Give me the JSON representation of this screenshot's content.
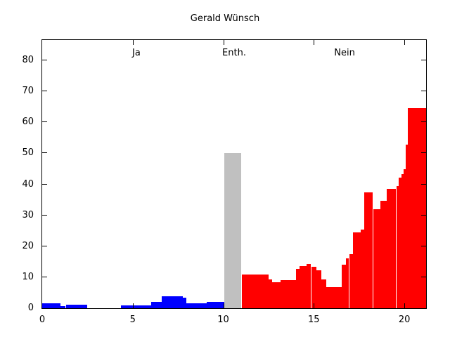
{
  "title": "Gerald Wünsch",
  "plot": {
    "background": "#ffffff",
    "border_color": "#000000",
    "region_labels": [
      {
        "label": "Ja",
        "x": 5.2
      },
      {
        "label": "Enth.",
        "x": 10.6
      },
      {
        "label": "Nein",
        "x": 16.7
      }
    ]
  },
  "chart_data": {
    "type": "bar",
    "title": "Gerald Wünsch",
    "xlabel": "",
    "ylabel": "",
    "xlim": [
      0,
      21.2
    ],
    "ylim": [
      0,
      86.6
    ],
    "x_ticks": [
      "0",
      "5",
      "10",
      "15",
      "20"
    ],
    "x_tick_values": [
      0,
      5,
      10,
      15,
      20
    ],
    "y_ticks": [
      "0",
      "10",
      "20",
      "30",
      "40",
      "50",
      "60",
      "70",
      "80"
    ],
    "y_tick_values": [
      0,
      10,
      20,
      30,
      40,
      50,
      60,
      70,
      80
    ],
    "grid": false,
    "legend": "none",
    "series": [
      {
        "name": "Ja",
        "color": "#0000ff",
        "bins": [
          [
            0.0,
            1.0,
            1.5
          ],
          [
            1.0,
            1.3,
            0.7
          ],
          [
            1.3,
            2.5,
            1.2
          ],
          [
            4.35,
            6.0,
            1.0
          ],
          [
            6.0,
            6.6,
            2.1
          ],
          [
            6.6,
            7.75,
            3.9
          ],
          [
            7.75,
            7.95,
            3.4
          ],
          [
            7.95,
            9.1,
            1.7
          ],
          [
            9.1,
            10.05,
            2.1
          ]
        ]
      },
      {
        "name": "Enth.",
        "color": "#c0c0c0",
        "bins": [
          [
            10.05,
            10.98,
            50.0
          ]
        ]
      },
      {
        "name": "Nein",
        "color": "#ff0000",
        "bins": [
          [
            11.02,
            12.5,
            10.8
          ],
          [
            12.5,
            12.7,
            9.2
          ],
          [
            12.7,
            13.15,
            8.3
          ],
          [
            13.15,
            14.0,
            9.0
          ],
          [
            14.0,
            14.2,
            12.8
          ],
          [
            14.2,
            14.6,
            13.7
          ],
          [
            14.6,
            14.85,
            14.4
          ],
          [
            14.85,
            15.15,
            13.5
          ],
          [
            15.15,
            15.4,
            12.2
          ],
          [
            15.4,
            15.7,
            9.4
          ],
          [
            15.7,
            16.55,
            6.8
          ],
          [
            16.55,
            16.77,
            14.0
          ],
          [
            16.77,
            16.95,
            16.1
          ],
          [
            16.95,
            17.15,
            17.4
          ],
          [
            17.15,
            17.6,
            24.4
          ],
          [
            17.6,
            17.8,
            25.5
          ],
          [
            17.8,
            18.27,
            37.5
          ],
          [
            18.27,
            18.66,
            32.0
          ],
          [
            18.66,
            19.04,
            34.6
          ],
          [
            19.04,
            19.55,
            38.5
          ],
          [
            19.55,
            19.68,
            39.4
          ],
          [
            19.68,
            19.85,
            42.2
          ],
          [
            19.85,
            19.97,
            43.4
          ],
          [
            19.97,
            20.07,
            45.0
          ],
          [
            20.07,
            20.19,
            52.9
          ],
          [
            20.19,
            21.2,
            64.6
          ]
        ]
      }
    ]
  }
}
